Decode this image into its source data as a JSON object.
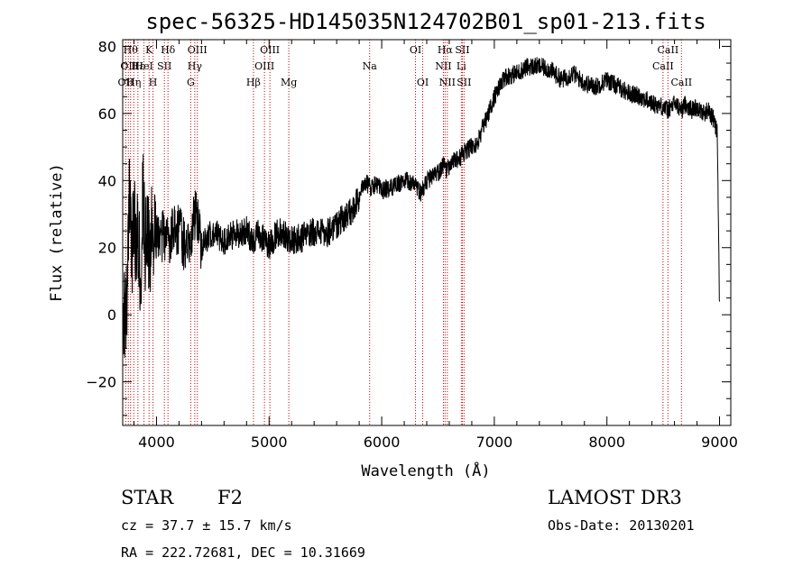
{
  "chart_data": {
    "type": "line",
    "title": "spec-56325-HD145035N124702B01_sp01-213.fits",
    "xlabel": "Wavelength (Å)",
    "ylabel": "Flux (relative)",
    "xlim": [
      3700,
      9100
    ],
    "ylim": [
      -33,
      82
    ],
    "xticks": [
      4000,
      5000,
      6000,
      7000,
      8000,
      9000
    ],
    "yticks": [
      -20,
      0,
      20,
      40,
      60,
      80
    ],
    "series": [
      {
        "name": "flux",
        "x": [
          3700,
          3740,
          3760,
          3780,
          3800,
          3820,
          3840,
          3860,
          3880,
          3900,
          3920,
          3940,
          3960,
          3980,
          4000,
          4030,
          4060,
          4100,
          4150,
          4200,
          4250,
          4300,
          4350,
          4400,
          4450,
          4500,
          4600,
          4700,
          4800,
          4861,
          4900,
          5000,
          5100,
          5200,
          5300,
          5400,
          5500,
          5600,
          5700,
          5750,
          5800,
          5850,
          5900,
          5950,
          6000,
          6100,
          6200,
          6300,
          6350,
          6400,
          6450,
          6500,
          6550,
          6563,
          6600,
          6650,
          6700,
          6750,
          6800,
          6850,
          6900,
          6950,
          7000,
          7050,
          7100,
          7200,
          7300,
          7400,
          7500,
          7600,
          7700,
          7800,
          7900,
          8000,
          8100,
          8200,
          8300,
          8400,
          8500,
          8542,
          8600,
          8662,
          8700,
          8750,
          8800,
          8850,
          8900,
          8950,
          8980,
          9000
        ],
        "values": [
          -5,
          5,
          35,
          15,
          30,
          20,
          25,
          10,
          38,
          18,
          30,
          12,
          28,
          22,
          25,
          20,
          24,
          22,
          25,
          26,
          20,
          24,
          30,
          20,
          23,
          25,
          22,
          24,
          25,
          22,
          24,
          21,
          25,
          22,
          23,
          25,
          24,
          27,
          30,
          31,
          35,
          40,
          38,
          39,
          37,
          38,
          40,
          39,
          36,
          40,
          41,
          42,
          45,
          43,
          44,
          46,
          47,
          49,
          50,
          51,
          56,
          60,
          65,
          68,
          71,
          72,
          74,
          74,
          73,
          70,
          72,
          69,
          68,
          70,
          68,
          66,
          65,
          63,
          62,
          61,
          63,
          61,
          63,
          61,
          62,
          60,
          61,
          58,
          54,
          2
        ]
      }
    ],
    "line_markers": [
      {
        "wl": 3727,
        "label": "OII",
        "row": 2
      },
      {
        "wl": 3750,
        "label": "OII",
        "row": 1
      },
      {
        "wl": 3770,
        "label": "Hθ",
        "row": 0
      },
      {
        "wl": 3798,
        "label": "Hη",
        "row": 2
      },
      {
        "wl": 3835,
        "label": "Hε",
        "row": 1
      },
      {
        "wl": 3889,
        "label": "HeI",
        "row": 1
      },
      {
        "wl": 3934,
        "label": "K",
        "row": 0
      },
      {
        "wl": 3969,
        "label": "H",
        "row": 2
      },
      {
        "wl": 4070,
        "label": "SII",
        "row": 1
      },
      {
        "wl": 4102,
        "label": "Hδ",
        "row": 0
      },
      {
        "wl": 4304,
        "label": "G",
        "row": 2
      },
      {
        "wl": 4340,
        "label": "Hγ",
        "row": 1
      },
      {
        "wl": 4363,
        "label": "OIII",
        "row": 0
      },
      {
        "wl": 4861,
        "label": "Hβ",
        "row": 2
      },
      {
        "wl": 4959,
        "label": "OIII",
        "row": 1
      },
      {
        "wl": 5007,
        "label": "OIII",
        "row": 0
      },
      {
        "wl": 5175,
        "label": "Mg",
        "row": 2
      },
      {
        "wl": 5893,
        "label": "Na",
        "row": 1
      },
      {
        "wl": 6300,
        "label": "OI",
        "row": 0
      },
      {
        "wl": 6364,
        "label": "OI",
        "row": 2
      },
      {
        "wl": 6548,
        "label": "NII",
        "row": 1
      },
      {
        "wl": 6563,
        "label": "Hα",
        "row": 0
      },
      {
        "wl": 6583,
        "label": "NII",
        "row": 2
      },
      {
        "wl": 6707,
        "label": "Li",
        "row": 1
      },
      {
        "wl": 6716,
        "label": "SII",
        "row": 0
      },
      {
        "wl": 6731,
        "label": "SII",
        "row": 2
      },
      {
        "wl": 8498,
        "label": "CaII",
        "row": 1
      },
      {
        "wl": 8542,
        "label": "CaII",
        "row": 0
      },
      {
        "wl": 8662,
        "label": "CaII",
        "row": 2
      }
    ]
  },
  "info": {
    "class": "STAR",
    "subclass": "F2",
    "survey": "LAMOST DR3",
    "cz": "cz = 37.7 ± 15.7 km/s",
    "obs_date": "Obs-Date: 20130201",
    "radec": "RA = 222.72681, DEC =  10.31669"
  },
  "colors": {
    "axis": "#000000",
    "spectrum": "#000000",
    "marker_line": "#cc0000"
  }
}
